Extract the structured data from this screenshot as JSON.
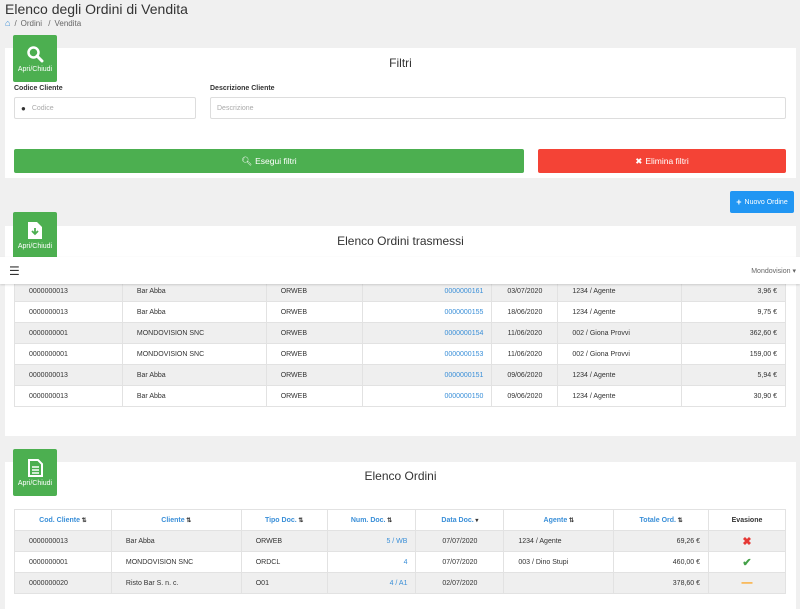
{
  "header": {
    "title": "Elenco degli Ordini di Vendita",
    "breadcrumb": [
      "Ordini",
      "Vendita"
    ]
  },
  "toggle_label": "Apri/Chiudi",
  "filters": {
    "title": "Filtri",
    "code_label": "Codice Cliente",
    "code_placeholder": "Codice",
    "desc_label": "Descrizione Cliente",
    "desc_placeholder": "Descrizione",
    "apply": "Esegui filtri",
    "clear": "Elimina filtri"
  },
  "new_order": "Nuovo Ordine",
  "topbar": {
    "user": "Mondovision"
  },
  "transmitted": {
    "title": "Elenco Ordini trasmessi",
    "rows": [
      {
        "code": "0000000013",
        "client": "Bar Abba",
        "type": "ORWEB",
        "num": "0000000161",
        "date": "03/07/2020",
        "agent": "1234 / Agente",
        "total": "3,96 €"
      },
      {
        "code": "0000000013",
        "client": "Bar Abba",
        "type": "ORWEB",
        "num": "0000000155",
        "date": "18/06/2020",
        "agent": "1234 / Agente",
        "total": "9,75 €"
      },
      {
        "code": "0000000001",
        "client": "MONDOVISION SNC",
        "type": "ORWEB",
        "num": "0000000154",
        "date": "11/06/2020",
        "agent": "002 / Giona Provvi",
        "total": "362,60 €"
      },
      {
        "code": "0000000001",
        "client": "MONDOVISION SNC",
        "type": "ORWEB",
        "num": "0000000153",
        "date": "11/06/2020",
        "agent": "002 / Giona Provvi",
        "total": "159,00 €"
      },
      {
        "code": "0000000013",
        "client": "Bar Abba",
        "type": "ORWEB",
        "num": "0000000151",
        "date": "09/06/2020",
        "agent": "1234 / Agente",
        "total": "5,94 €"
      },
      {
        "code": "0000000013",
        "client": "Bar Abba",
        "type": "ORWEB",
        "num": "0000000150",
        "date": "09/06/2020",
        "agent": "1234 / Agente",
        "total": "30,90 €"
      }
    ]
  },
  "orders": {
    "title": "Elenco Ordini",
    "columns": [
      "Cod. Cliente",
      "Cliente",
      "Tipo Doc.",
      "Num. Doc.",
      "Data Doc.",
      "Agente",
      "Totale Ord.",
      "Evasione"
    ],
    "rows": [
      {
        "code": "0000000013",
        "client": "Bar Abba",
        "type": "ORWEB",
        "num": "5 / WB",
        "date": "07/07/2020",
        "agent": "1234 / Agente",
        "total": "69,26 €",
        "status": "x",
        "status_color": "#e53935"
      },
      {
        "code": "0000000001",
        "client": "MONDOVISION SNC",
        "type": "ORDCL",
        "num": "4",
        "date": "07/07/2020",
        "agent": "003 / Dino Stupi",
        "total": "460,00 €",
        "status": "check",
        "status_color": "#43a047"
      },
      {
        "code": "0000000020",
        "client": "Risto Bar S. n. c.",
        "type": "O01",
        "num": "4 / A1",
        "date": "02/07/2020",
        "agent": "",
        "total": "378,60 €",
        "status": "dash",
        "status_color": "#ff9800"
      }
    ]
  }
}
